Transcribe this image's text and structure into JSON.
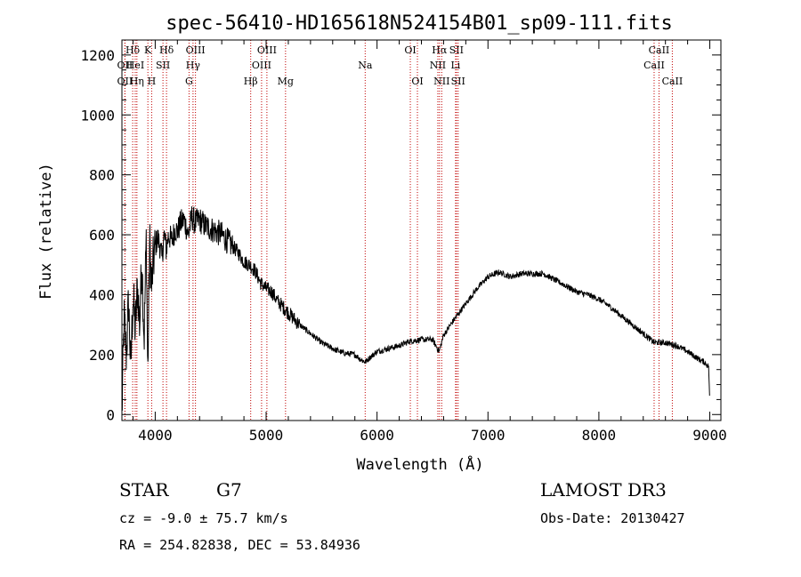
{
  "chart_data": {
    "type": "line",
    "title": "spec-56410-HD165618N524154B01_sp09-111.fits",
    "xlabel": "Wavelength (Å)",
    "ylabel": "Flux (relative)",
    "xlim": [
      3700,
      9100
    ],
    "ylim": [
      -20,
      1250
    ],
    "xticks": [
      4000,
      5000,
      6000,
      7000,
      8000,
      9000
    ],
    "yticks": [
      0,
      200,
      400,
      600,
      800,
      1000,
      1200
    ],
    "grid": false,
    "spectral_lines": [
      {
        "name": "Hδ",
        "wavelength": 3797,
        "row": 0
      },
      {
        "name": "OII",
        "wavelength": 3727,
        "row": 1
      },
      {
        "name": "OII",
        "wavelength": 3727,
        "row": 2
      },
      {
        "name": "HeI",
        "wavelength": 3820,
        "row": 1
      },
      {
        "name": "Hη",
        "wavelength": 3835,
        "row": 2
      },
      {
        "name": "K",
        "wavelength": 3934,
        "row": 0
      },
      {
        "name": "H",
        "wavelength": 3968,
        "row": 2
      },
      {
        "name": "SII",
        "wavelength": 4070,
        "row": 1
      },
      {
        "name": "Hδ",
        "wavelength": 4102,
        "row": 0
      },
      {
        "name": "OIII",
        "wavelength": 4363,
        "row": 0
      },
      {
        "name": "Hγ",
        "wavelength": 4341,
        "row": 1
      },
      {
        "name": "G",
        "wavelength": 4305,
        "row": 2
      },
      {
        "name": "Hβ",
        "wavelength": 4861,
        "row": 2
      },
      {
        "name": "OIII",
        "wavelength": 5007,
        "row": 0
      },
      {
        "name": "OIII",
        "wavelength": 4959,
        "row": 1
      },
      {
        "name": "Mg",
        "wavelength": 5175,
        "row": 2
      },
      {
        "name": "Na",
        "wavelength": 5893,
        "row": 1
      },
      {
        "name": "OI",
        "wavelength": 6300,
        "row": 0
      },
      {
        "name": "OI",
        "wavelength": 6364,
        "row": 2
      },
      {
        "name": "Hα",
        "wavelength": 6563,
        "row": 0
      },
      {
        "name": "NII",
        "wavelength": 6548,
        "row": 1
      },
      {
        "name": "NII",
        "wavelength": 6583,
        "row": 2
      },
      {
        "name": "SII",
        "wavelength": 6716,
        "row": 0
      },
      {
        "name": "Li",
        "wavelength": 6708,
        "row": 1
      },
      {
        "name": "SII",
        "wavelength": 6731,
        "row": 2
      },
      {
        "name": "CaII",
        "wavelength": 8542,
        "row": 0
      },
      {
        "name": "CaII",
        "wavelength": 8498,
        "row": 1
      },
      {
        "name": "CaII",
        "wavelength": 8662,
        "row": 2
      }
    ],
    "series": [
      {
        "x": [
          3700,
          3720,
          3740,
          3760,
          3780,
          3800,
          3820,
          3840,
          3860,
          3880,
          3900,
          3920,
          3933,
          3950,
          3968,
          3980,
          4000,
          4020,
          4040,
          4060,
          4080,
          4100,
          4120,
          4150,
          4180,
          4200,
          4230,
          4260,
          4300,
          4330,
          4360,
          4400,
          4450,
          4500,
          4550,
          4600,
          4650,
          4700,
          4750,
          4800,
          4850,
          4900,
          4950,
          5000,
          5050,
          5100,
          5150,
          5200,
          5250,
          5300,
          5400,
          5500,
          5600,
          5700,
          5800,
          5850,
          5893,
          5950,
          6000,
          6100,
          6200,
          6300,
          6400,
          6500,
          6560,
          6600,
          6700,
          6800,
          6900,
          7000,
          7100,
          7200,
          7300,
          7400,
          7500,
          7600,
          7700,
          7800,
          7900,
          8000,
          8100,
          8200,
          8300,
          8400,
          8500,
          8600,
          8700,
          8800,
          8900,
          8950,
          8990,
          9000
        ],
        "y": [
          0,
          320,
          200,
          380,
          150,
          400,
          280,
          430,
          300,
          520,
          250,
          600,
          120,
          580,
          420,
          500,
          560,
          590,
          570,
          520,
          600,
          550,
          600,
          580,
          620,
          610,
          640,
          650,
          600,
          660,
          640,
          650,
          630,
          620,
          610,
          600,
          580,
          560,
          540,
          510,
          500,
          480,
          440,
          420,
          410,
          380,
          360,
          340,
          320,
          300,
          270,
          240,
          220,
          205,
          200,
          185,
          175,
          195,
          210,
          220,
          230,
          245,
          250,
          250,
          210,
          265,
          320,
          370,
          420,
          460,
          475,
          460,
          470,
          470,
          470,
          450,
          430,
          410,
          400,
          385,
          360,
          330,
          300,
          270,
          240,
          240,
          230,
          210,
          185,
          175,
          160,
          30
        ]
      }
    ]
  },
  "info": {
    "object_class": "STAR",
    "subclass": "G7",
    "survey": "LAMOST DR3",
    "redshift": "cz = -9.0 ± 75.7 km/s",
    "obs_date": "Obs-Date: 20130427",
    "coords": "RA = 254.82838, DEC =  53.84936"
  }
}
